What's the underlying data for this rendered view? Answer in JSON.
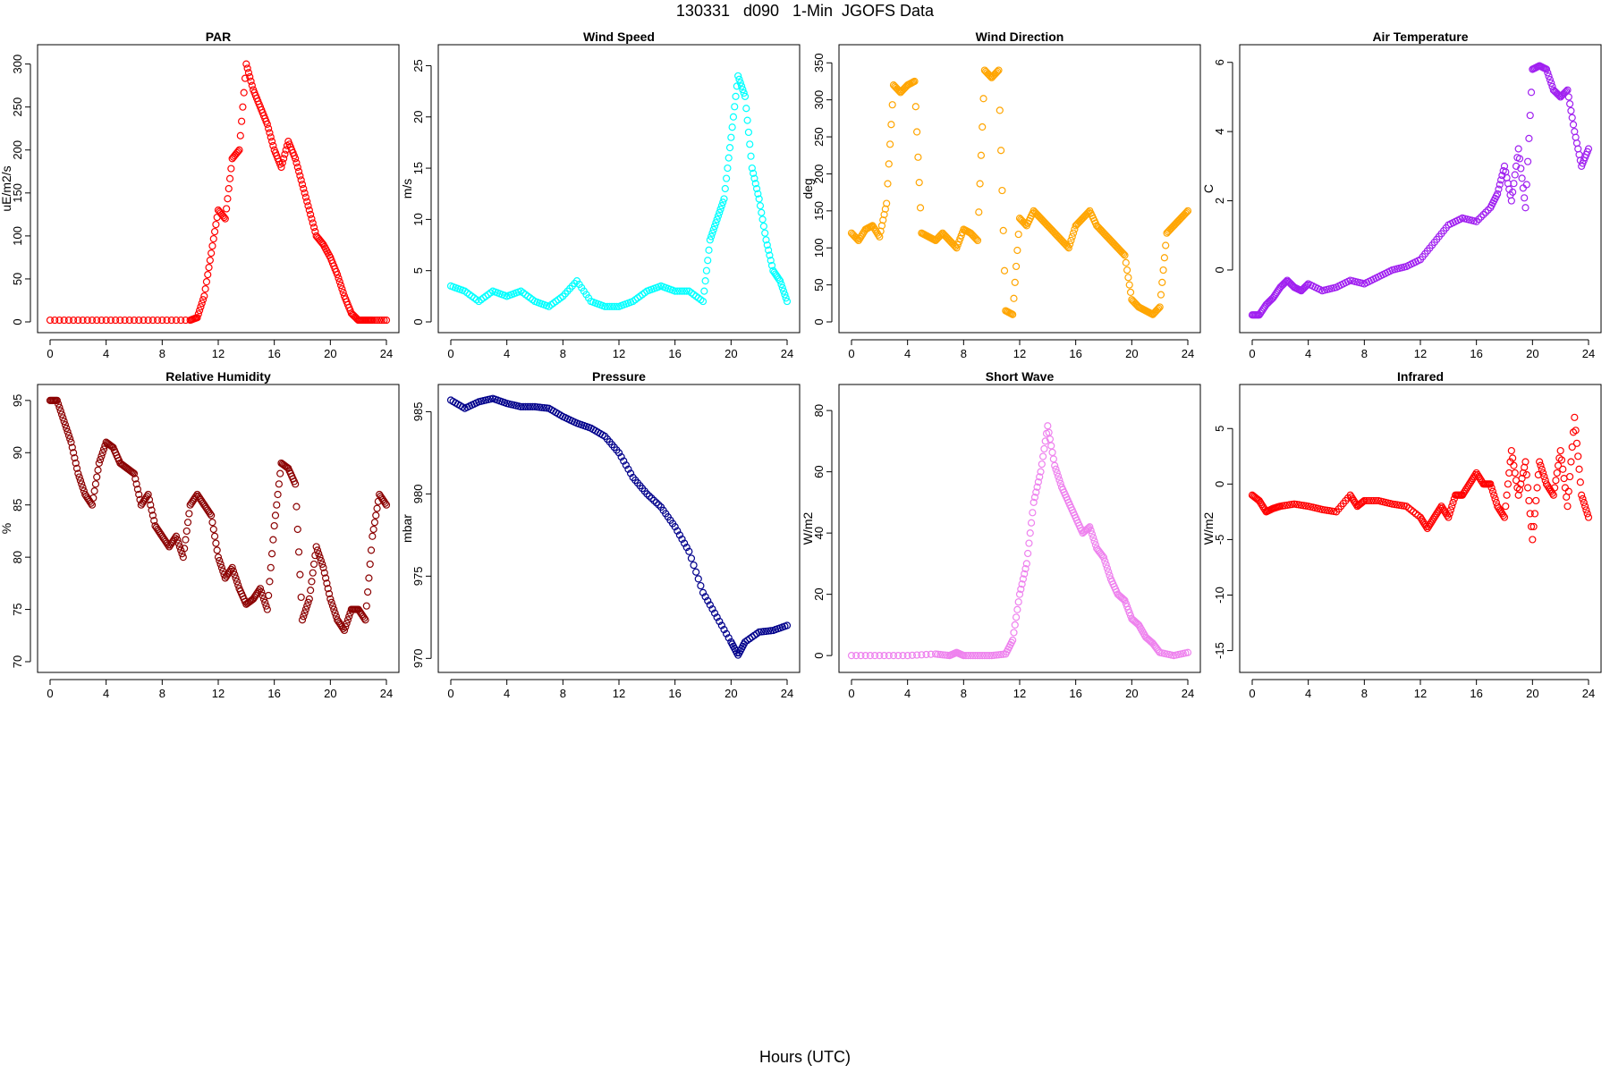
{
  "figure": {
    "title": "130331   d090   1-Min  JGOFS Data",
    "xlabel": "Hours (UTC)"
  },
  "chart_data": [
    {
      "type": "scatter",
      "title": "PAR",
      "ylabel": "uE/m2/s",
      "color": "#ff0000",
      "xlim": [
        0,
        24
      ],
      "ylim": [
        0,
        310
      ],
      "xticks": [
        0,
        4,
        8,
        12,
        16,
        20,
        24
      ],
      "yticks": [
        0,
        50,
        100,
        150,
        200,
        250,
        300
      ],
      "x": [
        0,
        2,
        4,
        6,
        8,
        10,
        10.5,
        11,
        11.5,
        12,
        12.5,
        13,
        13.5,
        14,
        14.5,
        15,
        15.5,
        16,
        16.5,
        17,
        17.5,
        18,
        18.5,
        19,
        19.5,
        20,
        20.5,
        21,
        21.5,
        22,
        22.5,
        23,
        24
      ],
      "y": [
        2,
        2,
        2,
        2,
        2,
        2,
        5,
        30,
        80,
        130,
        120,
        190,
        200,
        300,
        270,
        250,
        230,
        200,
        180,
        210,
        190,
        160,
        130,
        100,
        90,
        75,
        55,
        30,
        10,
        2,
        2,
        2,
        2
      ]
    },
    {
      "type": "scatter",
      "title": "Wind Speed",
      "ylabel": "m/s",
      "color": "#00ffff",
      "xlim": [
        0,
        24
      ],
      "ylim": [
        0,
        26
      ],
      "xticks": [
        0,
        4,
        8,
        12,
        16,
        20,
        24
      ],
      "yticks": [
        0,
        5,
        10,
        15,
        20,
        25
      ],
      "x": [
        0,
        1,
        2,
        3,
        4,
        5,
        6,
        7,
        8,
        9,
        10,
        11,
        12,
        13,
        14,
        15,
        16,
        17,
        18,
        18.5,
        19,
        19.5,
        20,
        20.5,
        21,
        21.5,
        22,
        22.5,
        23,
        23.5,
        24
      ],
      "y": [
        3.5,
        3,
        2,
        3,
        2.5,
        3,
        2,
        1.5,
        2.5,
        4,
        2,
        1.5,
        1.5,
        2,
        3,
        3.5,
        3,
        3,
        2,
        8,
        10,
        12,
        18,
        24,
        22,
        15,
        12,
        8,
        5,
        4,
        2
      ]
    },
    {
      "type": "scatter",
      "title": "Wind Direction",
      "ylabel": "deg",
      "color": "#ffa500",
      "xlim": [
        0,
        24
      ],
      "ylim": [
        0,
        360
      ],
      "xticks": [
        0,
        4,
        8,
        12,
        16,
        20,
        24
      ],
      "yticks": [
        0,
        50,
        100,
        150,
        200,
        250,
        300,
        350
      ],
      "x": [
        0,
        0.5,
        1,
        1.5,
        2,
        2.5,
        3,
        3.5,
        4,
        4.5,
        5,
        5.5,
        6,
        6.5,
        7,
        7.5,
        8,
        8.5,
        9,
        9.5,
        10,
        10.5,
        11,
        11.5,
        12,
        12.5,
        13,
        13.5,
        14,
        14.5,
        15,
        15.5,
        16,
        16.5,
        17,
        17.5,
        18,
        18.5,
        19,
        19.5,
        20,
        20.5,
        21,
        21.5,
        22,
        22.5,
        23,
        23.5,
        24
      ],
      "y": [
        120,
        110,
        125,
        130,
        115,
        160,
        320,
        310,
        320,
        325,
        120,
        115,
        110,
        120,
        110,
        100,
        125,
        120,
        110,
        340,
        330,
        340,
        15,
        10,
        140,
        130,
        150,
        140,
        130,
        120,
        110,
        100,
        130,
        140,
        150,
        130,
        120,
        110,
        100,
        90,
        30,
        20,
        15,
        10,
        20,
        120,
        130,
        140,
        150
      ]
    },
    {
      "type": "scatter",
      "title": "Air Temperature",
      "ylabel": "C",
      "color": "#a020f0",
      "xlim": [
        0,
        24
      ],
      "ylim": [
        -1.5,
        6.2
      ],
      "xticks": [
        0,
        4,
        8,
        12,
        16,
        20,
        24
      ],
      "yticks": [
        0,
        2,
        4,
        6
      ],
      "x": [
        0,
        0.5,
        1,
        1.5,
        2,
        2.5,
        3,
        3.5,
        4,
        5,
        6,
        7,
        8,
        9,
        10,
        11,
        12,
        13,
        14,
        15,
        16,
        17,
        17.5,
        18,
        18.5,
        19,
        19.5,
        20,
        20.5,
        21,
        21.5,
        22,
        22.5,
        23,
        23.5,
        24
      ],
      "y": [
        -1.3,
        -1.3,
        -1,
        -0.8,
        -0.5,
        -0.3,
        -0.5,
        -0.6,
        -0.4,
        -0.6,
        -0.5,
        -0.3,
        -0.4,
        -0.2,
        0,
        0.1,
        0.3,
        0.8,
        1.3,
        1.5,
        1.4,
        1.8,
        2.2,
        3,
        2,
        3.5,
        1.8,
        5.8,
        5.9,
        5.8,
        5.2,
        5,
        5.2,
        4,
        3,
        3.5
      ]
    },
    {
      "type": "scatter",
      "title": "Relative Humidity",
      "ylabel": "%",
      "color": "#8b0000",
      "xlim": [
        0,
        24
      ],
      "ylim": [
        70,
        95.5
      ],
      "xticks": [
        0,
        4,
        8,
        12,
        16,
        20,
        24
      ],
      "yticks": [
        70,
        75,
        80,
        85,
        90,
        95
      ],
      "x": [
        0,
        0.5,
        1,
        1.5,
        2,
        2.5,
        3,
        3.5,
        4,
        4.5,
        5,
        5.5,
        6,
        6.5,
        7,
        7.5,
        8,
        8.5,
        9,
        9.5,
        10,
        10.5,
        11,
        11.5,
        12,
        12.5,
        13,
        13.5,
        14,
        14.5,
        15,
        15.5,
        16,
        16.5,
        17,
        17.5,
        18,
        18.5,
        19,
        19.5,
        20,
        20.5,
        21,
        21.5,
        22,
        22.5,
        23,
        23.5,
        24
      ],
      "y": [
        95,
        95,
        93,
        91,
        88,
        86,
        85,
        89,
        91,
        90.5,
        89,
        88.5,
        88,
        85,
        86,
        83,
        82,
        81,
        82,
        80,
        85,
        86,
        85,
        84,
        80,
        78,
        79,
        77,
        75.5,
        76,
        77,
        75,
        83,
        89,
        88.5,
        87,
        74,
        76,
        81,
        79,
        76,
        74,
        73,
        75,
        75,
        74,
        82,
        86,
        85
      ]
    },
    {
      "type": "scatter",
      "title": "Pressure",
      "ylabel": "mbar",
      "color": "#00008b",
      "xlim": [
        0,
        24
      ],
      "ylim": [
        969.8,
        986
      ],
      "xticks": [
        0,
        4,
        8,
        12,
        16,
        20,
        24
      ],
      "yticks": [
        970,
        975,
        980,
        985
      ],
      "x": [
        0,
        1,
        2,
        3,
        4,
        5,
        6,
        7,
        8,
        9,
        10,
        11,
        12,
        13,
        14,
        15,
        16,
        17,
        18,
        19,
        20,
        20.5,
        21,
        22,
        23,
        24
      ],
      "y": [
        985.7,
        985.2,
        985.6,
        985.8,
        985.5,
        985.3,
        985.3,
        985.2,
        984.7,
        984.3,
        984,
        983.5,
        982.5,
        981,
        980,
        979.2,
        978,
        976.5,
        974,
        972.5,
        971,
        970.2,
        971,
        971.6,
        971.7,
        972
      ]
    },
    {
      "type": "scatter",
      "title": "Short Wave",
      "ylabel": "W/m2",
      "color": "#ee82ee",
      "xlim": [
        0,
        24
      ],
      "ylim": [
        -2,
        85
      ],
      "xticks": [
        0,
        4,
        8,
        12,
        16,
        20,
        24
      ],
      "yticks": [
        0,
        20,
        40,
        60,
        80
      ],
      "x": [
        0,
        2,
        4,
        6,
        7,
        7.5,
        8,
        9,
        10,
        11,
        11.5,
        12,
        12.5,
        13,
        13.5,
        14,
        14.5,
        15,
        15.5,
        16,
        16.5,
        17,
        17.5,
        18,
        18.5,
        19,
        19.5,
        20,
        20.5,
        21,
        21.5,
        22,
        23,
        24
      ],
      "y": [
        0,
        0,
        0,
        0.5,
        0,
        1,
        0,
        0,
        0,
        0.5,
        5,
        20,
        30,
        50,
        60,
        75,
        62,
        55,
        50,
        45,
        40,
        42,
        35,
        32,
        25,
        20,
        18,
        12,
        10,
        6,
        4,
        1,
        0,
        1
      ]
    },
    {
      "type": "scatter",
      "title": "Infrared",
      "ylabel": "W/m2",
      "color": "#ff0000",
      "xlim": [
        0,
        24
      ],
      "ylim": [
        -16,
        8
      ],
      "xticks": [
        0,
        4,
        8,
        12,
        16,
        20,
        24
      ],
      "yticks": [
        -15,
        -10,
        -5,
        0,
        5
      ],
      "x": [
        0,
        0.5,
        1,
        1.5,
        2,
        3,
        4,
        5,
        6,
        7,
        7.5,
        8,
        9,
        10,
        11,
        12,
        12.5,
        13,
        13.5,
        14,
        14.5,
        15,
        15.5,
        16,
        16.5,
        17,
        17.5,
        18,
        18.5,
        19,
        19.5,
        20,
        20.5,
        21,
        21.5,
        22,
        22.5,
        23,
        23.5,
        24
      ],
      "y": [
        -1,
        -1.5,
        -2.5,
        -2.2,
        -2,
        -1.8,
        -2,
        -2.3,
        -2.5,
        -1,
        -2,
        -1.5,
        -1.5,
        -1.8,
        -2,
        -3,
        -4,
        -3,
        -2,
        -3,
        -1,
        -1,
        0,
        1,
        0,
        0,
        -2,
        -3,
        3,
        -1,
        2,
        -5,
        2,
        0,
        -1,
        3,
        -2,
        6,
        -1,
        -3
      ]
    }
  ]
}
